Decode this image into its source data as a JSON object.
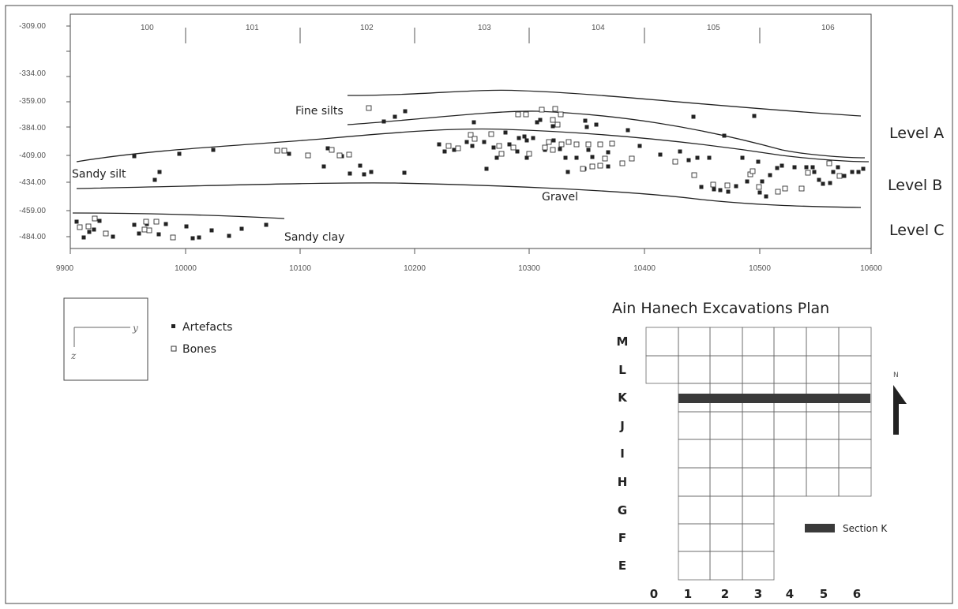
{
  "section": {
    "grid_labels": [
      "100",
      "101",
      "102",
      "103",
      "104",
      "105",
      "106"
    ],
    "y_ticks": [
      "-309.00",
      "-334.00",
      "-359.00",
      "-384.00",
      "-409.00",
      "-434.00",
      "-459.00",
      "-484.00"
    ],
    "x_ticks": [
      "9900",
      "10000",
      "10100",
      "10200",
      "10300",
      "10400",
      "10500",
      "10600"
    ],
    "layer_labels": {
      "fine_silts": "Fine silts",
      "sandy_silt": "Sandy silt",
      "gravel": "Gravel",
      "sandy_clay": "Sandy clay"
    },
    "levels": [
      "Level A",
      "Level B",
      "Level C"
    ]
  },
  "legend": {
    "axis_y": "y",
    "axis_z": "z",
    "artefacts": "Artefacts",
    "bones": "Bones"
  },
  "plan": {
    "title": "Ain Hanech Excavations Plan",
    "rows": [
      "M",
      "L",
      "K",
      "J",
      "I",
      "H",
      "G",
      "F",
      "E"
    ],
    "cols": [
      "0",
      "1",
      "2",
      "3",
      "4",
      "5",
      "6"
    ],
    "section_label": "Section K",
    "north": "N"
  },
  "colors": {
    "artefact": "#222222",
    "bone": "#ffffff",
    "section_bar": "#3a3a3a"
  }
}
